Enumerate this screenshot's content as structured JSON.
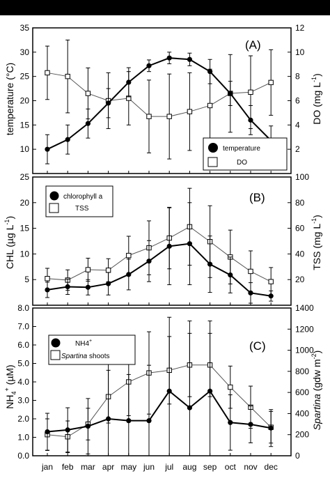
{
  "months": [
    "jan",
    "feb",
    "mar",
    "apr",
    "may",
    "jun",
    "jul",
    "aug",
    "sep",
    "oct",
    "nov",
    "dec"
  ],
  "chart_data": [
    {
      "panel": "(A)",
      "type": "line",
      "categories": [
        "jan",
        "feb",
        "mar",
        "apr",
        "may",
        "jun",
        "jul",
        "aug",
        "sep",
        "oct",
        "nov",
        "dec"
      ],
      "left_axis": {
        "label": "temperature (°C)",
        "ylim": [
          5,
          35
        ],
        "ticks": [
          10,
          15,
          20,
          25,
          30,
          35
        ]
      },
      "right_axis": {
        "label": "DO (mg L-1)",
        "ylim": [
          0,
          12
        ],
        "ticks": [
          2,
          4,
          6,
          8,
          10,
          12
        ]
      },
      "legend_placement": "bottom-right",
      "series": [
        {
          "name": "temperature",
          "axis": "left",
          "marker": "filled-circle",
          "values": [
            10.0,
            12.0,
            15.3,
            19.5,
            23.8,
            27.2,
            28.8,
            28.5,
            26.0,
            21.5,
            16.0,
            11.8
          ],
          "error": [
            3.0,
            3.0,
            3.0,
            3.0,
            3.0,
            1.2,
            1.2,
            1.3,
            2.5,
            2.5,
            3.0,
            3.0
          ]
        },
        {
          "name": "DO",
          "axis": "right",
          "marker": "open-square",
          "values": [
            8.3,
            8.0,
            6.6,
            6.0,
            6.2,
            4.7,
            4.7,
            5.1,
            5.6,
            6.6,
            6.7,
            7.5
          ],
          "error": [
            2.2,
            3.0,
            2.1,
            2.3,
            2.2,
            3.0,
            3.5,
            3.2,
            3.0,
            3.2,
            3.0,
            2.7
          ]
        }
      ]
    },
    {
      "panel": "(B)",
      "type": "line",
      "categories": [
        "jan",
        "feb",
        "mar",
        "apr",
        "may",
        "jun",
        "jul",
        "aug",
        "sep",
        "oct",
        "nov",
        "dec"
      ],
      "left_axis": {
        "label": "CHL (µg L-1)",
        "ylim": [
          0,
          25
        ],
        "ticks": [
          5,
          10,
          15,
          20,
          25
        ]
      },
      "right_axis": {
        "label": "TSS (mg L-1)",
        "ylim": [
          0,
          100
        ],
        "ticks": [
          20,
          40,
          60,
          80,
          100
        ]
      },
      "legend_placement": "top-left",
      "series": [
        {
          "name": "chlorophyll a",
          "axis": "left",
          "marker": "filled-circle",
          "values": [
            3.0,
            3.6,
            3.5,
            4.2,
            6.0,
            8.6,
            11.5,
            12.0,
            8.0,
            5.9,
            2.4,
            1.8
          ],
          "error": [
            1.5,
            1.5,
            1.5,
            2.2,
            3.0,
            4.0,
            7.5,
            8.0,
            5.5,
            3.5,
            2.0,
            1.0
          ]
        },
        {
          "name": "TSS",
          "axis": "right",
          "marker": "open-square",
          "values": [
            20.8,
            19.6,
            27.7,
            27.3,
            38.8,
            44.8,
            52.4,
            61.2,
            49.6,
            37.6,
            26.4,
            18.4
          ],
          "error": [
            8.0,
            8.0,
            9.0,
            9.0,
            15.0,
            21.0,
            24.0,
            30.0,
            28.0,
            21.0,
            16.0,
            11.0
          ]
        }
      ]
    },
    {
      "panel": "(C)",
      "type": "line",
      "categories": [
        "jan",
        "feb",
        "mar",
        "apr",
        "may",
        "jun",
        "jul",
        "aug",
        "sep",
        "oct",
        "nov",
        "dec"
      ],
      "left_axis": {
        "label": "NH4+ (µM)",
        "ylim": [
          0,
          8
        ],
        "ticks": [
          "0.0",
          "1.0",
          "2.0",
          "3.0",
          "4.0",
          "5.0",
          "6.0",
          "7.0",
          "8.0"
        ]
      },
      "right_axis": {
        "label": "Spartina (gdw m-2)",
        "ylim": [
          0,
          1400
        ],
        "ticks": [
          0,
          200,
          400,
          600,
          800,
          1000,
          1200,
          1400
        ]
      },
      "legend_placement": "top-left",
      "series": [
        {
          "name": "NH4+",
          "axis": "left",
          "marker": "filled-circle",
          "values": [
            1.3,
            1.4,
            1.6,
            2.0,
            1.9,
            1.9,
            3.5,
            2.6,
            3.5,
            1.8,
            1.7,
            1.5
          ],
          "error": [
            1.0,
            1.2,
            1.5,
            3.8,
            2.5,
            3.0,
            4.0,
            4.7,
            3.8,
            1.5,
            1.0,
            1.0
          ]
        },
        {
          "name": "Spartina shoots",
          "axis": "right",
          "marker": "open-square",
          "values": [
            200,
            180,
            300,
            560,
            700,
            785,
            810,
            860,
            860,
            650,
            460,
            270
          ],
          "error": [
            150,
            150,
            150,
            250,
            320,
            390,
            320,
            300,
            300,
            200,
            200,
            150
          ]
        }
      ]
    }
  ],
  "legends": {
    "a_temperature": "temperature",
    "a_do": "DO",
    "b_chl": "chlorophyll a",
    "b_tss": "TSS",
    "c_nh4": "NH4",
    "c_spartina_italic": "Spartina",
    "c_spartina_rest": " shoots"
  },
  "labels": {
    "panel_a": "(A)",
    "panel_b": "(B)",
    "panel_c": "(C)",
    "temp_axis": "temperature (°C)",
    "do_axis_main": "DO (mg L",
    "do_axis_sup": "-1",
    "do_axis_end": ")",
    "chl_axis_main": "CHL (µg L",
    "chl_axis_sup": "-1",
    "chl_axis_end": ")",
    "tss_axis_main": "TSS (mg L",
    "tss_axis_sup": "-1",
    "tss_axis_end": ")",
    "nh4_axis_main": "NH",
    "nh4_axis_sub": "4",
    "nh4_axis_sup": "+",
    "nh4_axis_end": " (µM)",
    "spartina_axis_italic": "Spartina",
    "spartina_axis_main": " (gdw m",
    "spartina_axis_sup": "-2",
    "spartina_axis_end": ")",
    "nh4_legend_sup": "+"
  }
}
